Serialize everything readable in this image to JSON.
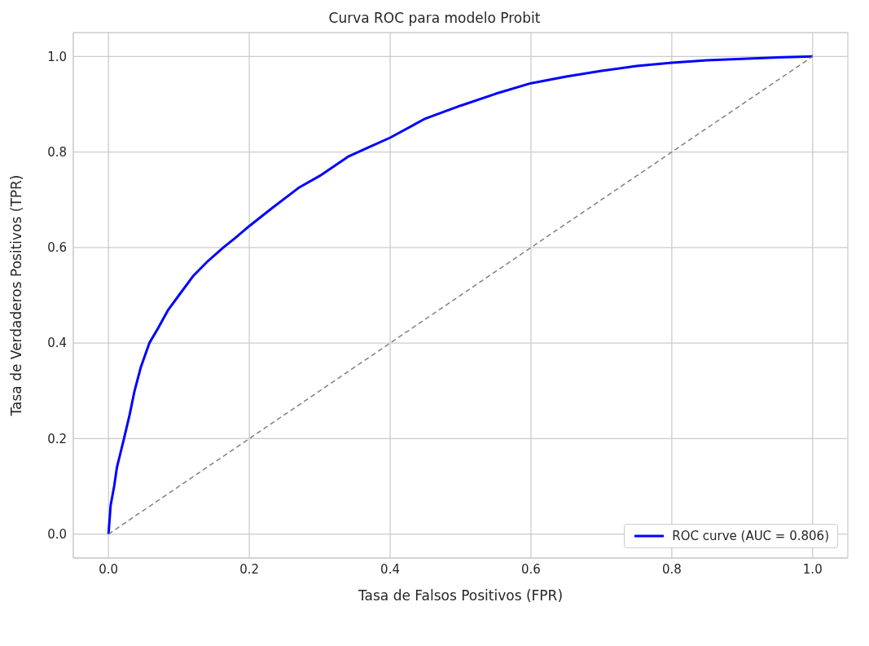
{
  "chart_data": {
    "type": "line",
    "title": "Curva ROC para modelo Probit",
    "xlabel": "Tasa de Falsos Positivos (FPR)",
    "ylabel": "Tasa de Verdaderos Positivos (TPR)",
    "xlim": [
      -0.05,
      1.05
    ],
    "ylim": [
      -0.05,
      1.05
    ],
    "xticks": [
      {
        "value": 0,
        "label": "0.0"
      },
      0.2,
      0.4,
      0.6,
      0.8,
      {
        "value": 1,
        "label": "1.0"
      }
    ],
    "yticks": [
      {
        "value": 0,
        "label": "0.0"
      },
      0.2,
      0.4,
      0.6,
      0.8,
      {
        "value": 1,
        "label": "1.0"
      }
    ],
    "grid": true,
    "legend": "bottom right",
    "marker": "none",
    "series": [
      {
        "name": "ROC curve (AUC = 0.806)",
        "color": "#0000ff",
        "line_style": "solid",
        "x": [
          0,
          0.003,
          0.008,
          0.012,
          0.017,
          0.022,
          0.03,
          0.037,
          0.046,
          0.058,
          0.07,
          0.085,
          0.1,
          0.12,
          0.14,
          0.163,
          0.18,
          0.2,
          0.23,
          0.27,
          0.3,
          0.34,
          0.37,
          0.4,
          0.45,
          0.5,
          0.55,
          0.6,
          0.65,
          0.7,
          0.75,
          0.8,
          0.85,
          0.9,
          0.95,
          1.0
        ],
        "values": [
          0,
          0.06,
          0.1,
          0.14,
          0.17,
          0.2,
          0.25,
          0.3,
          0.35,
          0.4,
          0.43,
          0.47,
          0.5,
          0.54,
          0.57,
          0.6,
          0.62,
          0.645,
          0.68,
          0.725,
          0.75,
          0.79,
          0.81,
          0.83,
          0.87,
          0.897,
          0.922,
          0.944,
          0.958,
          0.97,
          0.98,
          0.987,
          0.992,
          0.995,
          0.998,
          1.0
        ]
      },
      {
        "color": "#808080",
        "line_style": "dashed",
        "x": [
          0,
          1
        ],
        "values": [
          0,
          1
        ]
      }
    ]
  }
}
